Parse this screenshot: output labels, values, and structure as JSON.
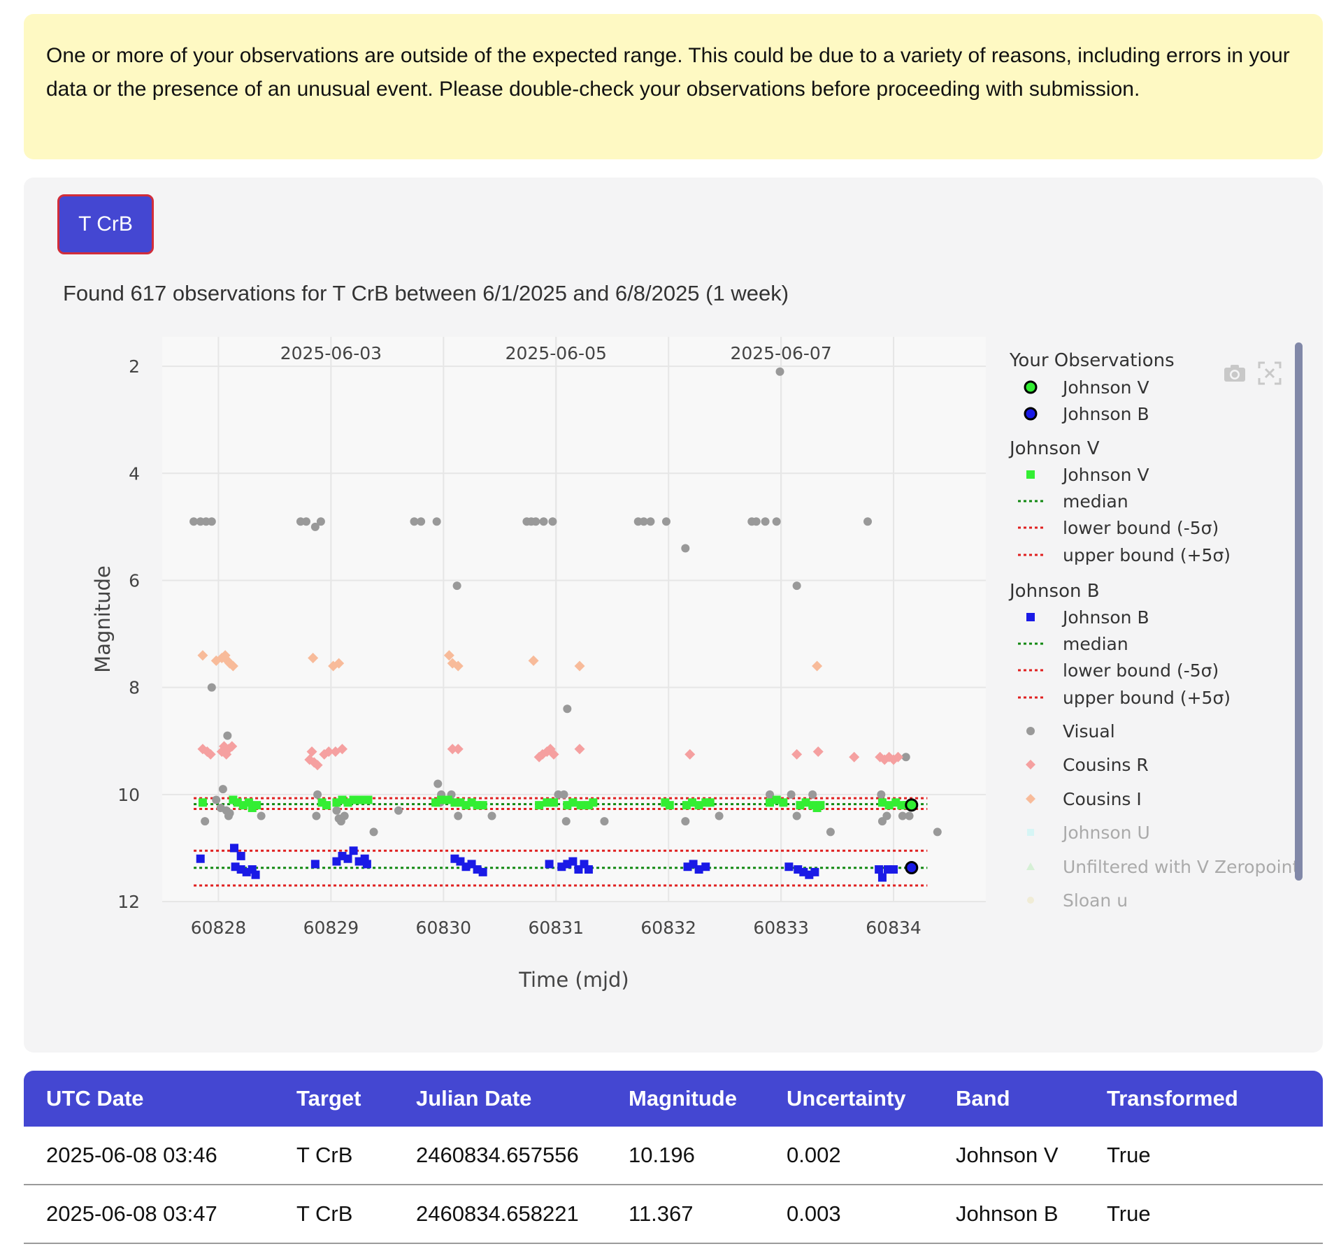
{
  "warning": {
    "text": "One or more of your observations are outside of the expected range. This could be due to a variety of reasons, including errors in your data or the presence of an unusual event. Please double-check your observations before proceeding with submission."
  },
  "target_button": {
    "label": "T CrB"
  },
  "summary": {
    "text": "Found 617 observations for T CrB between 6/1/2025 and 6/8/2025 (1 week)"
  },
  "colors": {
    "accent": "#4447d2",
    "warning_bg": "#fef9c3",
    "johnson_v": "#33ee33",
    "johnson_b": "#1a1ae6",
    "visual": "#999999",
    "cousins_r": "#f5a0a0",
    "cousins_i": "#f8bb9a",
    "median": "#118811",
    "bound": "#e02020"
  },
  "icons": [
    "camera-icon",
    "autoscale-icon"
  ],
  "chart_data": {
    "type": "scatter",
    "xlabel": "Time (mjd)",
    "ylabel": "Magnitude",
    "xlim": [
      60827.5,
      60834.82
    ],
    "ylim": [
      1.45,
      12.0
    ],
    "y_reversed": true,
    "x_ticks": [
      60828,
      60829,
      60830,
      60831,
      60832,
      60833,
      60834
    ],
    "y_ticks": [
      2,
      4,
      6,
      8,
      10,
      12
    ],
    "date_ticks": [
      {
        "x": 60829.0,
        "label": "2025-06-03"
      },
      {
        "x": 60831.0,
        "label": "2025-06-05"
      },
      {
        "x": 60833.0,
        "label": "2025-06-07"
      }
    ],
    "legend_placement": "right",
    "legend_groups": [
      {
        "title": "Your Observations",
        "items": [
          "Johnson V",
          "Johnson B"
        ]
      },
      {
        "title": "Johnson V",
        "items": [
          "Johnson V",
          "median",
          "lower bound (-5σ)",
          "upper bound (+5σ)"
        ]
      },
      {
        "title": "Johnson B",
        "items": [
          "Johnson B",
          "median",
          "lower bound (-5σ)",
          "upper bound (+5σ)"
        ]
      },
      {
        "title": "",
        "items": [
          "Visual",
          "Cousins R",
          "Cousins I",
          "Johnson U",
          "Unfiltered with V Zeropoint",
          "Sloan u"
        ]
      }
    ],
    "lines": {
      "johnson_v": {
        "median": 10.18,
        "lower": 10.07,
        "upper": 10.27
      },
      "johnson_b": {
        "median": 11.37,
        "lower": 11.05,
        "upper": 11.7
      }
    },
    "your_observations": [
      {
        "series": "Johnson V",
        "x": 60834.16,
        "y": 10.196
      },
      {
        "series": "Johnson B",
        "x": 60834.16,
        "y": 11.367
      }
    ],
    "visual": [
      [
        60827.78,
        4.9
      ],
      [
        60827.84,
        4.9
      ],
      [
        60827.89,
        4.9
      ],
      [
        60827.94,
        4.9
      ],
      [
        60828.73,
        4.9
      ],
      [
        60828.78,
        4.9
      ],
      [
        60828.86,
        5.0
      ],
      [
        60828.91,
        4.9
      ],
      [
        60829.74,
        4.9
      ],
      [
        60829.8,
        4.9
      ],
      [
        60829.94,
        4.9
      ],
      [
        60830.74,
        4.9
      ],
      [
        60830.78,
        4.9
      ],
      [
        60830.82,
        4.9
      ],
      [
        60830.89,
        4.9
      ],
      [
        60830.97,
        4.9
      ],
      [
        60831.73,
        4.9
      ],
      [
        60831.78,
        4.9
      ],
      [
        60831.84,
        4.9
      ],
      [
        60831.98,
        4.9
      ],
      [
        60832.74,
        4.9
      ],
      [
        60832.78,
        4.9
      ],
      [
        60832.86,
        4.9
      ],
      [
        60832.96,
        4.9
      ],
      [
        60833.77,
        4.9
      ],
      [
        60832.15,
        5.4
      ],
      [
        60830.12,
        6.1
      ],
      [
        60833.14,
        6.1
      ],
      [
        60832.99,
        2.1
      ],
      [
        60827.94,
        8.0
      ],
      [
        60828.08,
        8.9
      ],
      [
        60831.1,
        8.4
      ],
      [
        60834.11,
        9.3
      ],
      [
        60828.04,
        9.9
      ],
      [
        60827.98,
        10.1
      ],
      [
        60828.07,
        10.3
      ],
      [
        60828.1,
        10.35
      ],
      [
        60828.09,
        10.4
      ],
      [
        60828.02,
        10.25
      ],
      [
        60827.88,
        10.5
      ],
      [
        60828.38,
        10.4
      ],
      [
        60828.88,
        10.0
      ],
      [
        60828.87,
        10.4
      ],
      [
        60829.05,
        10.3
      ],
      [
        60829.07,
        10.45
      ],
      [
        60829.12,
        10.4
      ],
      [
        60829.09,
        10.5
      ],
      [
        60829.38,
        10.7
      ],
      [
        60829.6,
        10.3
      ],
      [
        60829.95,
        9.8
      ],
      [
        60829.98,
        10.0
      ],
      [
        60830.07,
        10.0
      ],
      [
        60829.97,
        10.15
      ],
      [
        60830.13,
        10.4
      ],
      [
        60830.43,
        10.4
      ],
      [
        60831.02,
        10.0
      ],
      [
        60831.07,
        10.0
      ],
      [
        60831.1,
        10.2
      ],
      [
        60831.09,
        10.5
      ],
      [
        60831.43,
        10.5
      ],
      [
        60832.15,
        10.5
      ],
      [
        60832.45,
        10.4
      ],
      [
        60832.9,
        10.0
      ],
      [
        60833.09,
        10.0
      ],
      [
        60833.14,
        10.4
      ],
      [
        60833.28,
        10.0
      ],
      [
        60833.44,
        10.7
      ],
      [
        60833.89,
        10.0
      ],
      [
        60833.9,
        10.5
      ],
      [
        60833.94,
        10.4
      ],
      [
        60834.08,
        10.4
      ],
      [
        60834.14,
        10.4
      ],
      [
        60834.39,
        10.7
      ]
    ],
    "cousins_r": [
      [
        60827.86,
        9.15
      ],
      [
        60827.9,
        9.2
      ],
      [
        60827.93,
        9.25
      ],
      [
        60828.03,
        9.2
      ],
      [
        60828.05,
        9.1
      ],
      [
        60828.07,
        9.25
      ],
      [
        60828.09,
        9.15
      ],
      [
        60828.12,
        9.1
      ],
      [
        60828.83,
        9.2
      ],
      [
        60828.81,
        9.35
      ],
      [
        60828.85,
        9.4
      ],
      [
        60828.88,
        9.45
      ],
      [
        60828.94,
        9.25
      ],
      [
        60828.98,
        9.2
      ],
      [
        60829.04,
        9.2
      ],
      [
        60829.1,
        9.15
      ],
      [
        60830.08,
        9.15
      ],
      [
        60830.13,
        9.15
      ],
      [
        60830.85,
        9.3
      ],
      [
        60830.88,
        9.25
      ],
      [
        60830.92,
        9.2
      ],
      [
        60830.95,
        9.15
      ],
      [
        60830.98,
        9.25
      ],
      [
        60831.21,
        9.15
      ],
      [
        60832.19,
        9.25
      ],
      [
        60833.14,
        9.25
      ],
      [
        60833.33,
        9.2
      ],
      [
        60833.65,
        9.3
      ],
      [
        60833.88,
        9.3
      ],
      [
        60833.92,
        9.35
      ],
      [
        60833.96,
        9.3
      ],
      [
        60834.0,
        9.35
      ],
      [
        60834.04,
        9.3
      ]
    ],
    "cousins_i": [
      [
        60827.86,
        7.4
      ],
      [
        60827.98,
        7.5
      ],
      [
        60828.03,
        7.45
      ],
      [
        60828.06,
        7.4
      ],
      [
        60828.08,
        7.5
      ],
      [
        60828.1,
        7.55
      ],
      [
        60828.13,
        7.6
      ],
      [
        60828.84,
        7.45
      ],
      [
        60829.02,
        7.6
      ],
      [
        60829.07,
        7.55
      ],
      [
        60830.05,
        7.4
      ],
      [
        60830.08,
        7.55
      ],
      [
        60830.13,
        7.6
      ],
      [
        60830.8,
        7.5
      ],
      [
        60831.21,
        7.6
      ],
      [
        60833.32,
        7.6
      ]
    ],
    "johnson_v": [
      [
        60827.86,
        10.15
      ],
      [
        60828.13,
        10.1
      ],
      [
        60828.17,
        10.15
      ],
      [
        60828.22,
        10.2
      ],
      [
        60828.27,
        10.15
      ],
      [
        60828.3,
        10.25
      ],
      [
        60828.34,
        10.2
      ],
      [
        60828.92,
        10.15
      ],
      [
        60828.96,
        10.2
      ],
      [
        60829.05,
        10.15
      ],
      [
        60829.1,
        10.1
      ],
      [
        60829.15,
        10.15
      ],
      [
        60829.2,
        10.1
      ],
      [
        60829.25,
        10.1
      ],
      [
        60829.3,
        10.1
      ],
      [
        60829.33,
        10.1
      ],
      [
        60829.93,
        10.15
      ],
      [
        60829.98,
        10.1
      ],
      [
        60830.04,
        10.1
      ],
      [
        60830.1,
        10.15
      ],
      [
        60830.15,
        10.15
      ],
      [
        60830.2,
        10.2
      ],
      [
        60830.25,
        10.15
      ],
      [
        60830.3,
        10.2
      ],
      [
        60830.35,
        10.2
      ],
      [
        60830.85,
        10.2
      ],
      [
        60830.92,
        10.15
      ],
      [
        60830.98,
        10.15
      ],
      [
        60831.1,
        10.2
      ],
      [
        60831.15,
        10.15
      ],
      [
        60831.22,
        10.2
      ],
      [
        60831.29,
        10.2
      ],
      [
        60831.33,
        10.15
      ],
      [
        60831.97,
        10.15
      ],
      [
        60832.01,
        10.2
      ],
      [
        60832.16,
        10.2
      ],
      [
        60832.21,
        10.15
      ],
      [
        60832.27,
        10.2
      ],
      [
        60832.33,
        10.15
      ],
      [
        60832.37,
        10.15
      ],
      [
        60832.9,
        10.15
      ],
      [
        60832.96,
        10.1
      ],
      [
        60833.02,
        10.15
      ],
      [
        60833.17,
        10.2
      ],
      [
        60833.22,
        10.15
      ],
      [
        60833.28,
        10.2
      ],
      [
        60833.32,
        10.25
      ],
      [
        60833.35,
        10.2
      ],
      [
        60833.9,
        10.15
      ],
      [
        60833.96,
        10.2
      ],
      [
        60834.02,
        10.15
      ],
      [
        60834.07,
        10.2
      ],
      [
        60834.12,
        10.2
      ]
    ],
    "johnson_b": [
      [
        60827.84,
        11.2
      ],
      [
        60828.14,
        11.0
      ],
      [
        60828.2,
        11.15
      ],
      [
        60828.15,
        11.35
      ],
      [
        60828.2,
        11.4
      ],
      [
        60828.25,
        11.45
      ],
      [
        60828.3,
        11.4
      ],
      [
        60828.33,
        11.5
      ],
      [
        60828.86,
        11.3
      ],
      [
        60829.05,
        11.25
      ],
      [
        60829.1,
        11.15
      ],
      [
        60829.15,
        11.2
      ],
      [
        60829.2,
        11.05
      ],
      [
        60829.25,
        11.25
      ],
      [
        60829.3,
        11.2
      ],
      [
        60829.32,
        11.3
      ],
      [
        60830.1,
        11.2
      ],
      [
        60830.15,
        11.25
      ],
      [
        60830.2,
        11.35
      ],
      [
        60830.25,
        11.3
      ],
      [
        60830.3,
        11.4
      ],
      [
        60830.35,
        11.45
      ],
      [
        60830.94,
        11.3
      ],
      [
        60831.05,
        11.35
      ],
      [
        60831.1,
        11.3
      ],
      [
        60831.15,
        11.25
      ],
      [
        60831.2,
        11.4
      ],
      [
        60831.25,
        11.3
      ],
      [
        60831.29,
        11.4
      ],
      [
        60832.17,
        11.35
      ],
      [
        60832.22,
        11.3
      ],
      [
        60832.27,
        11.4
      ],
      [
        60832.33,
        11.35
      ],
      [
        60833.07,
        11.35
      ],
      [
        60833.15,
        11.4
      ],
      [
        60833.2,
        11.45
      ],
      [
        60833.25,
        11.5
      ],
      [
        60833.3,
        11.45
      ],
      [
        60833.87,
        11.4
      ],
      [
        60833.9,
        11.55
      ],
      [
        60833.95,
        11.4
      ],
      [
        60834.0,
        11.4
      ]
    ]
  },
  "table": {
    "columns": [
      "UTC Date",
      "Target",
      "Julian Date",
      "Magnitude",
      "Uncertainty",
      "Band",
      "Transformed"
    ],
    "rows": [
      [
        "2025-06-08 03:46",
        "T CrB",
        "2460834.657556",
        "10.196",
        "0.002",
        "Johnson V",
        "True"
      ],
      [
        "2025-06-08 03:47",
        "T CrB",
        "2460834.658221",
        "11.367",
        "0.003",
        "Johnson B",
        "True"
      ]
    ]
  }
}
